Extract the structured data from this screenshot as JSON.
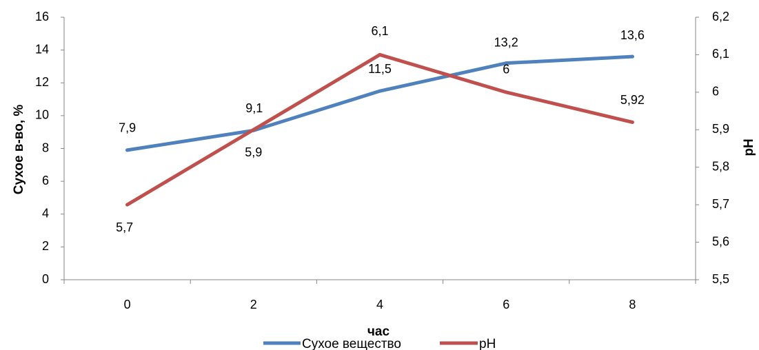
{
  "chart_data": {
    "type": "line",
    "x": [
      "0",
      "2",
      "4",
      "6",
      "8"
    ],
    "xlabel": "час",
    "ylabel_left": "Сухое в-во, %",
    "ylabel_right": "pH",
    "ylim_left": [
      0,
      16
    ],
    "ylim_right": [
      5.5,
      6.2
    ],
    "left_ticks": [
      "0",
      "2",
      "4",
      "6",
      "8",
      "10",
      "12",
      "14",
      "16"
    ],
    "right_ticks": [
      "5,5",
      "5,6",
      "5,7",
      "5,8",
      "5,9",
      "6",
      "6,1",
      "6,2"
    ],
    "grid": false,
    "legend_position": "bottom",
    "series": [
      {
        "name": "Сухое вещество",
        "axis": "left",
        "color": "#4F81BD",
        "values": [
          7.9,
          9.1,
          11.5,
          13.2,
          13.6
        ],
        "labels": [
          "7,9",
          "9,1",
          "11,5",
          "13,2",
          "13,6"
        ]
      },
      {
        "name": "pH",
        "axis": "right",
        "color": "#C0504D",
        "values": [
          5.7,
          5.9,
          6.1,
          6.0,
          5.92
        ],
        "labels": [
          "5,7",
          "5,9",
          "6,1",
          "6",
          "5,92"
        ]
      }
    ]
  }
}
